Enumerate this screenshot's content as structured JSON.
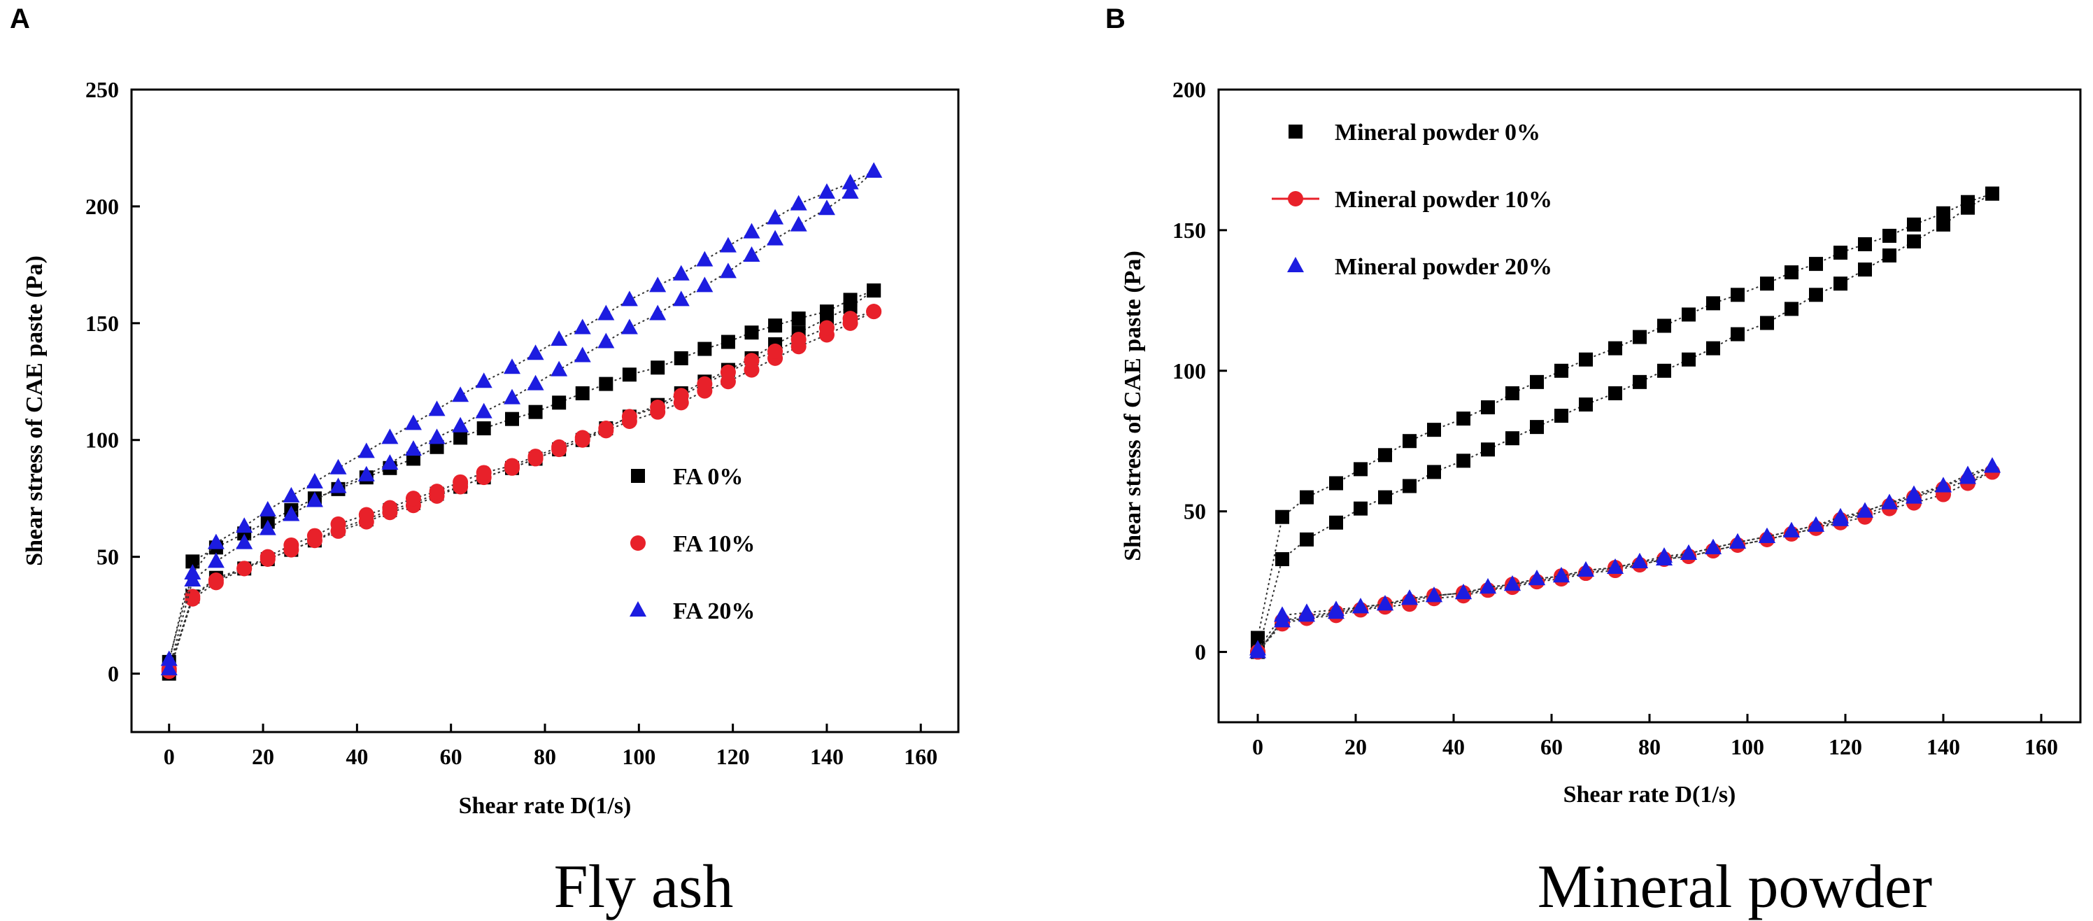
{
  "chart_data": [
    {
      "type": "scatter",
      "panel_label": "A",
      "caption": "Fly ash",
      "xlabel": "Shear rate D(1/s)",
      "ylabel": "Shear stress of CAE paste (Pa)",
      "xlim": [
        -8,
        168
      ],
      "ylim": [
        -25,
        250
      ],
      "xticks": [
        0,
        20,
        40,
        60,
        80,
        100,
        120,
        140,
        160
      ],
      "yticks": [
        0,
        50,
        100,
        150,
        200,
        250
      ],
      "legend_position": "center-right",
      "series": [
        {
          "name": "FA 0%",
          "marker": "square",
          "color": "#000000",
          "legend_line": false,
          "up": {
            "x": [
              0,
              5,
              10,
              16,
              21,
              26,
              31,
              36,
              42,
              47,
              52,
              57,
              62,
              67,
              73,
              78,
              83,
              88,
              93,
              98,
              104,
              109,
              114,
              119,
              124,
              129,
              134,
              140,
              145,
              150
            ],
            "y": [
              5,
              48,
              54,
              60,
              65,
              70,
              75,
              79,
              84,
              88,
              92,
              97,
              101,
              105,
              109,
              112,
              116,
              120,
              124,
              128,
              131,
              135,
              139,
              142,
              146,
              149,
              152,
              155,
              160,
              164
            ]
          },
          "down": {
            "x": [
              150,
              145,
              140,
              134,
              129,
              124,
              119,
              114,
              109,
              104,
              98,
              93,
              88,
              83,
              78,
              73,
              67,
              62,
              57,
              52,
              47,
              42,
              36,
              31,
              26,
              21,
              16,
              10,
              5,
              0
            ],
            "y": [
              164,
              157,
              152,
              146,
              141,
              135,
              130,
              125,
              120,
              115,
              110,
              105,
              100,
              96,
              92,
              88,
              84,
              80,
              77,
              73,
              70,
              66,
              62,
              57,
              53,
              49,
              45,
              41,
              33,
              0
            ]
          }
        },
        {
          "name": "FA 10%",
          "marker": "circle",
          "color": "#e8212a",
          "legend_line": false,
          "up": {
            "x": [
              0,
              5,
              10,
              16,
              21,
              26,
              31,
              36,
              42,
              47,
              52,
              57,
              62,
              67,
              73,
              78,
              83,
              88,
              93,
              98,
              104,
              109,
              114,
              119,
              124,
              129,
              134,
              140,
              145,
              150
            ],
            "y": [
              2,
              33,
              40,
              45,
              49,
              53,
              57,
              61,
              65,
              69,
              72,
              76,
              80,
              84,
              88,
              92,
              96,
              100,
              104,
              108,
              112,
              116,
              121,
              125,
              130,
              135,
              140,
              145,
              150,
              155
            ]
          },
          "down": {
            "x": [
              150,
              145,
              140,
              134,
              129,
              124,
              119,
              114,
              109,
              104,
              98,
              93,
              88,
              83,
              78,
              73,
              67,
              62,
              57,
              52,
              47,
              42,
              36,
              31,
              26,
              21,
              16,
              10,
              5,
              0
            ],
            "y": [
              155,
              152,
              148,
              143,
              138,
              134,
              129,
              124,
              119,
              114,
              110,
              105,
              101,
              97,
              93,
              89,
              86,
              82,
              78,
              75,
              71,
              68,
              64,
              59,
              55,
              50,
              45,
              39,
              32,
              1
            ]
          }
        },
        {
          "name": "FA 20%",
          "marker": "triangle",
          "color": "#1c1ce0",
          "legend_line": false,
          "up": {
            "x": [
              0,
              5,
              10,
              16,
              21,
              26,
              31,
              36,
              42,
              47,
              52,
              57,
              62,
              67,
              73,
              78,
              83,
              88,
              93,
              98,
              104,
              109,
              114,
              119,
              124,
              129,
              134,
              140,
              145,
              150
            ],
            "y": [
              6,
              43,
              56,
              63,
              70,
              76,
              82,
              88,
              95,
              101,
              107,
              113,
              119,
              125,
              131,
              137,
              143,
              148,
              154,
              160,
              166,
              171,
              177,
              183,
              189,
              195,
              201,
              206,
              210,
              215
            ]
          },
          "down": {
            "x": [
              150,
              145,
              140,
              134,
              129,
              124,
              119,
              114,
              109,
              104,
              98,
              93,
              88,
              83,
              78,
              73,
              67,
              62,
              57,
              52,
              47,
              42,
              36,
              31,
              26,
              21,
              16,
              10,
              5,
              0
            ],
            "y": [
              215,
              206,
              199,
              192,
              186,
              179,
              172,
              166,
              160,
              154,
              148,
              142,
              136,
              130,
              124,
              118,
              112,
              106,
              101,
              96,
              90,
              85,
              80,
              74,
              68,
              62,
              56,
              48,
              40,
              2
            ]
          }
        }
      ]
    },
    {
      "type": "scatter",
      "panel_label": "B",
      "caption": "Mineral powder",
      "xlabel": "Shear rate D(1/s)",
      "ylabel": "Shear stress of CAE paste (Pa)",
      "xlim": [
        -8,
        168
      ],
      "ylim": [
        -25,
        200
      ],
      "xticks": [
        0,
        20,
        40,
        60,
        80,
        100,
        120,
        140,
        160
      ],
      "yticks": [
        0,
        50,
        100,
        150,
        200
      ],
      "legend_position": "top-left",
      "series": [
        {
          "name": "Mineral powder 0%",
          "marker": "square",
          "color": "#000000",
          "legend_line": false,
          "up": {
            "x": [
              0,
              5,
              10,
              16,
              21,
              26,
              31,
              36,
              42,
              47,
              52,
              57,
              62,
              67,
              73,
              78,
              83,
              88,
              93,
              98,
              104,
              109,
              114,
              119,
              124,
              129,
              134,
              140,
              145,
              150
            ],
            "y": [
              5,
              48,
              55,
              60,
              65,
              70,
              75,
              79,
              83,
              87,
              92,
              96,
              100,
              104,
              108,
              112,
              116,
              120,
              124,
              127,
              131,
              135,
              138,
              142,
              145,
              148,
              152,
              156,
              160,
              163
            ]
          },
          "down": {
            "x": [
              150,
              145,
              140,
              134,
              129,
              124,
              119,
              114,
              109,
              104,
              98,
              93,
              88,
              83,
              78,
              73,
              67,
              62,
              57,
              52,
              47,
              42,
              36,
              31,
              26,
              21,
              16,
              10,
              5,
              0
            ],
            "y": [
              163,
              158,
              152,
              146,
              141,
              136,
              131,
              127,
              122,
              117,
              113,
              108,
              104,
              100,
              96,
              92,
              88,
              84,
              80,
              76,
              72,
              68,
              64,
              59,
              55,
              51,
              46,
              40,
              33,
              0
            ]
          }
        },
        {
          "name": "Mineral powder 10%",
          "marker": "circle",
          "color": "#e8212a",
          "legend_line": true,
          "up": {
            "x": [
              0,
              5,
              10,
              16,
              21,
              26,
              31,
              36,
              42,
              47,
              52,
              57,
              62,
              67,
              73,
              78,
              83,
              88,
              93,
              98,
              104,
              109,
              114,
              119,
              124,
              129,
              134,
              140,
              145,
              150
            ],
            "y": [
              0,
              11,
              12,
              13,
              15,
              16,
              17,
              19,
              20,
              22,
              23,
              25,
              26,
              28,
              29,
              31,
              33,
              34,
              36,
              38,
              40,
              42,
              44,
              46,
              48,
              51,
              53,
              56,
              60,
              64
            ]
          },
          "down": {
            "x": [
              150,
              145,
              140,
              134,
              129,
              124,
              119,
              114,
              109,
              104,
              98,
              93,
              88,
              83,
              78,
              73,
              67,
              62,
              57,
              52,
              47,
              42,
              36,
              31,
              26,
              21,
              16,
              10,
              5,
              0
            ],
            "y": [
              64,
              61,
              58,
              55,
              52,
              49,
              47,
              44,
              42,
              40,
              38,
              36,
              34,
              33,
              31,
              30,
              28,
              27,
              25,
              24,
              22,
              21,
              20,
              18,
              17,
              15,
              14,
              12,
              10,
              0
            ]
          }
        },
        {
          "name": "Mineral powder 20%",
          "marker": "triangle",
          "color": "#1c1ce0",
          "legend_line": false,
          "up": {
            "x": [
              0,
              5,
              10,
              16,
              21,
              26,
              31,
              36,
              42,
              47,
              52,
              57,
              62,
              67,
              73,
              78,
              83,
              88,
              93,
              98,
              104,
              109,
              114,
              119,
              124,
              129,
              134,
              140,
              145,
              150
            ],
            "y": [
              1,
              13,
              14,
              15,
              16,
              17,
              19,
              20,
              21,
              23,
              24,
              26,
              27,
              29,
              30,
              32,
              34,
              35,
              37,
              39,
              41,
              43,
              45,
              47,
              50,
              53,
              55,
              59,
              62,
              66
            ]
          },
          "down": {
            "x": [
              150,
              145,
              140,
              134,
              129,
              124,
              119,
              114,
              109,
              104,
              98,
              93,
              88,
              83,
              78,
              73,
              67,
              62,
              57,
              52,
              47,
              42,
              36,
              31,
              26,
              21,
              16,
              10,
              5,
              0
            ],
            "y": [
              66,
              63,
              59,
              56,
              53,
              50,
              48,
              45,
              43,
              41,
              39,
              37,
              35,
              33,
              32,
              30,
              29,
              27,
              26,
              24,
              23,
              21,
              20,
              19,
              17,
              16,
              14,
              13,
              11,
              0
            ]
          }
        }
      ]
    }
  ]
}
